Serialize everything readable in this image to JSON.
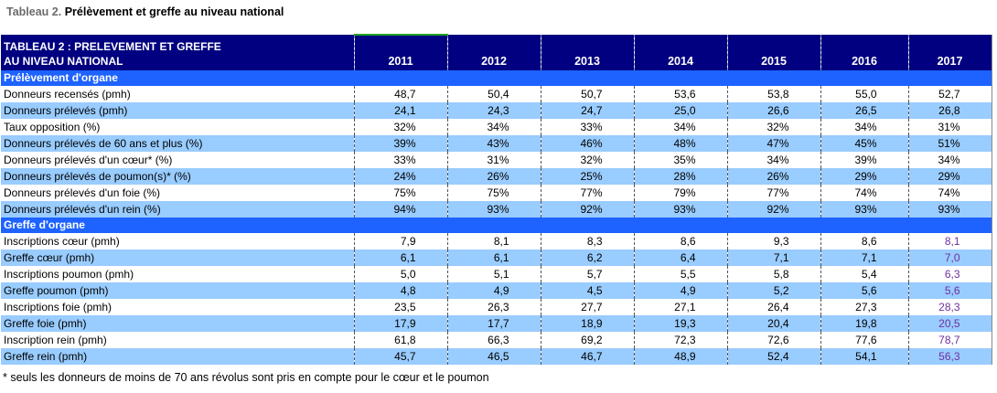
{
  "caption": {
    "prefix": "Tableau 2.",
    "title": "Prélèvement et greffe au niveau national"
  },
  "table": {
    "header_line1": "TABLEAU 2 : PRELEVEMENT ET GREFFE",
    "header_line2": "AU NIVEAU NATIONAL",
    "years": [
      "2011",
      "2012",
      "2013",
      "2014",
      "2015",
      "2016",
      "2017"
    ],
    "sections": [
      {
        "title": "Prélèvement d'organe",
        "rows": [
          {
            "label": "Donneurs recensés (pmh)",
            "values": [
              "48,7",
              "50,4",
              "50,7",
              "53,6",
              "53,8",
              "55,0",
              "52,7"
            ]
          },
          {
            "label": "Donneurs prélevés (pmh)",
            "values": [
              "24,1",
              "24,3",
              "24,7",
              "25,0",
              "26,6",
              "26,5",
              "26,8"
            ]
          },
          {
            "label": "Taux opposition (%)",
            "values": [
              "32%",
              "34%",
              "33%",
              "34%",
              "32%",
              "34%",
              "31%"
            ]
          },
          {
            "label": "Donneurs prélevés de 60 ans et plus (%)",
            "values": [
              "39%",
              "43%",
              "46%",
              "48%",
              "47%",
              "45%",
              "51%"
            ]
          },
          {
            "label": "Donneurs prélevés d'un cœur* (%)",
            "values": [
              "33%",
              "31%",
              "32%",
              "35%",
              "34%",
              "39%",
              "34%"
            ]
          },
          {
            "label": "Donneurs prélevés de poumon(s)* (%)",
            "values": [
              "24%",
              "26%",
              "25%",
              "28%",
              "26%",
              "29%",
              "29%"
            ]
          },
          {
            "label": "Donneurs prélevés d'un foie (%)",
            "values": [
              "75%",
              "75%",
              "77%",
              "79%",
              "77%",
              "74%",
              "74%"
            ]
          },
          {
            "label": "Donneurs prélevés d'un rein (%)",
            "values": [
              "94%",
              "93%",
              "92%",
              "93%",
              "92%",
              "93%",
              "93%"
            ]
          }
        ]
      },
      {
        "title": "Greffe d'organe",
        "rows": [
          {
            "label": "Inscriptions cœur (pmh)",
            "values": [
              "7,9",
              "8,1",
              "8,3",
              "8,6",
              "9,3",
              "8,6",
              "8,1"
            ]
          },
          {
            "label": "Greffe cœur (pmh)",
            "values": [
              "6,1",
              "6,1",
              "6,2",
              "6,4",
              "7,1",
              "7,1",
              "7,0"
            ]
          },
          {
            "label": "Inscriptions poumon (pmh)",
            "values": [
              "5,0",
              "5,1",
              "5,7",
              "5,5",
              "5,8",
              "5,4",
              "6,3"
            ]
          },
          {
            "label": "Greffe poumon (pmh)",
            "values": [
              "4,8",
              "4,9",
              "4,5",
              "4,9",
              "5,2",
              "5,6",
              "5,6"
            ]
          },
          {
            "label": "Inscriptions foie (pmh)",
            "values": [
              "23,5",
              "26,3",
              "27,7",
              "27,1",
              "26,4",
              "27,3",
              "28,3"
            ]
          },
          {
            "label": "Greffe foie (pmh)",
            "values": [
              "17,9",
              "17,7",
              "18,9",
              "19,3",
              "20,4",
              "19,8",
              "20,5"
            ]
          },
          {
            "label": "Inscription rein (pmh)",
            "values": [
              "61,8",
              "66,3",
              "69,2",
              "72,3",
              "72,6",
              "77,6",
              "78,7"
            ]
          },
          {
            "label": "Greffe rein (pmh)",
            "values": [
              "45,7",
              "46,5",
              "46,7",
              "48,9",
              "52,4",
              "54,1",
              "56,3"
            ]
          }
        ]
      }
    ]
  },
  "footnote": "* seuls les donneurs de moins de 70 ans révolus sont pris en compte pour  le cœur et le poumon",
  "colors": {
    "header_bg": "#000080",
    "section_bg": "#1e63ff",
    "row_alt_bg": "#99ccff",
    "highlight_text": "#7030a0",
    "caption_prefix": "#6b6b6b"
  }
}
